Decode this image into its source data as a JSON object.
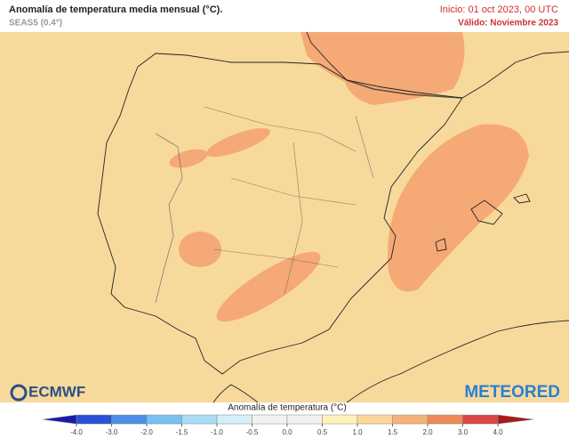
{
  "header": {
    "title": "Anomalía de temperatura media mensual (°C).",
    "subtitle": "SEAS5 (0.4°)",
    "init": "Inicio: 01 oct 2023, 00 UTC",
    "valid": "Válido: Noviembre 2023"
  },
  "logos": {
    "left": "ECMWF",
    "right": "METEORED"
  },
  "legend": {
    "title": "Anomalía de temperatura (°C)",
    "ticks": [
      {
        "value": -4,
        "label": "-4.0"
      },
      {
        "value": -3,
        "label": "-3.0"
      },
      {
        "value": -2,
        "label": "-2.0"
      },
      {
        "value": -1.5,
        "label": "-1.5"
      },
      {
        "value": -1,
        "label": "-1.0"
      },
      {
        "value": -0.5,
        "label": "-0.5"
      },
      {
        "value": 0,
        "label": "0.0"
      },
      {
        "value": 0.5,
        "label": "0.5"
      },
      {
        "value": 1,
        "label": "1.0"
      },
      {
        "value": 1.5,
        "label": "1.5"
      },
      {
        "value": 2,
        "label": "2.0"
      },
      {
        "value": 3,
        "label": "3.0"
      },
      {
        "value": 4,
        "label": "4.0"
      }
    ],
    "colors": [
      "#2a4fd8",
      "#4a8ee8",
      "#78c0f0",
      "#a8dcf5",
      "#d6eef8",
      "#f2f2f2",
      "#f2f2f2",
      "#fdf3b8",
      "#fbd89a",
      "#f6b27a",
      "#ee8a5a",
      "#dd4444"
    ],
    "under": "#1a1aa8",
    "over": "#a81a1a"
  }
}
